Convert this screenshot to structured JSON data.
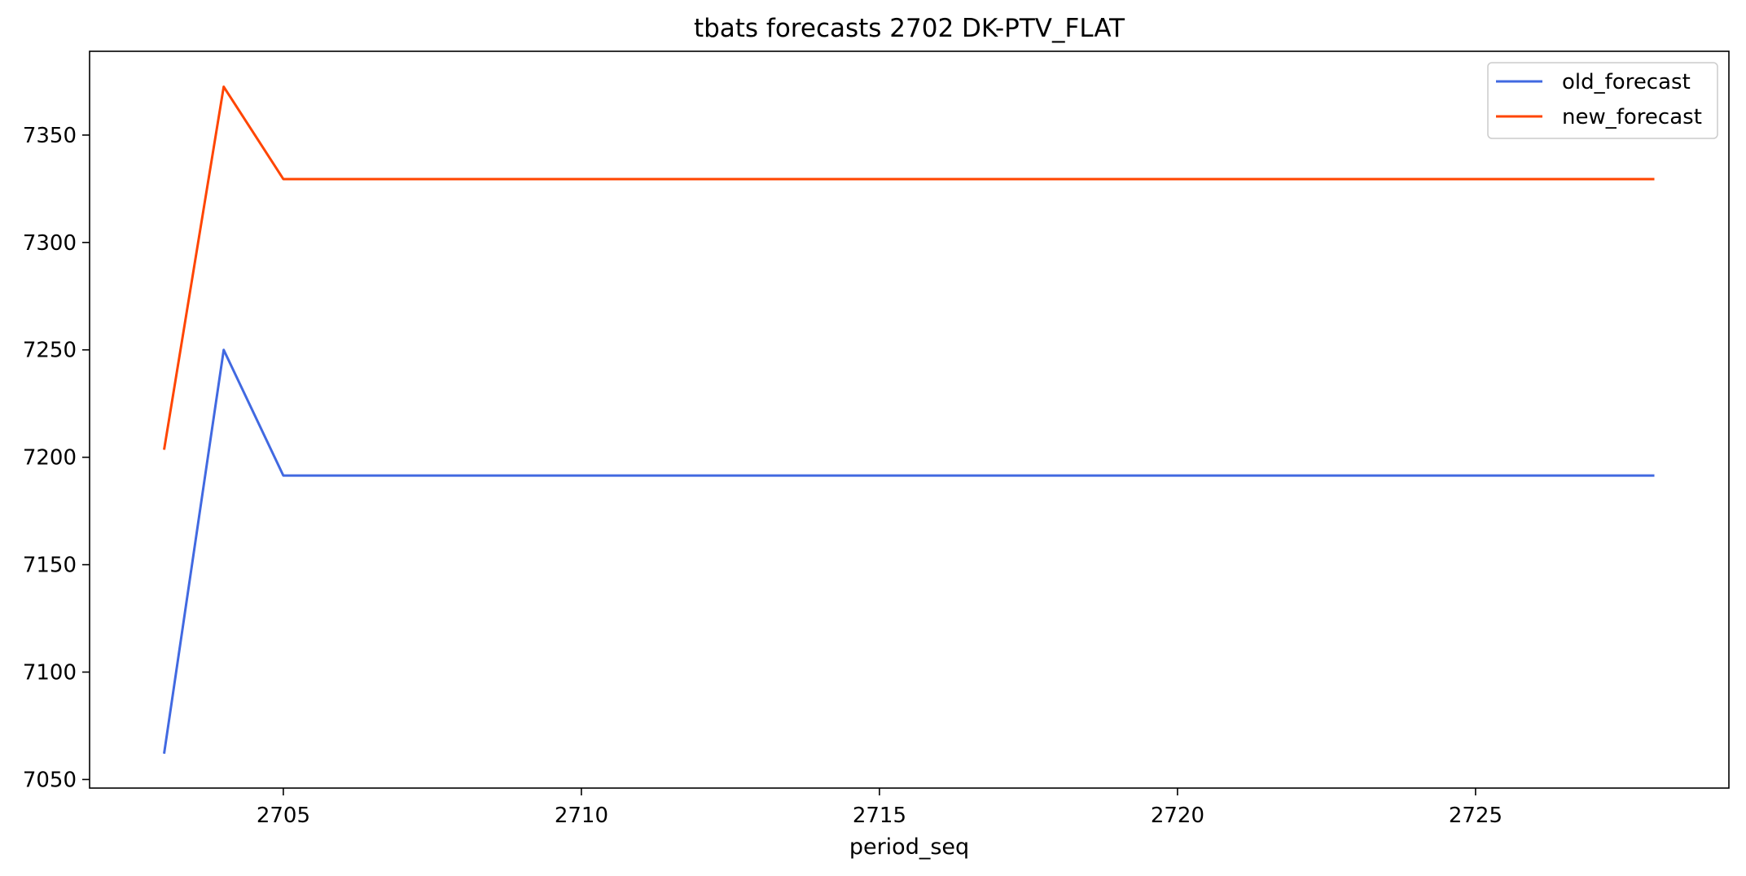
{
  "chart_data": {
    "type": "line",
    "title": "tbats forecasts 2702 DK-PTV_FLAT",
    "xlabel": "period_seq",
    "ylabel": "",
    "x": [
      2703,
      2704,
      2705,
      2706,
      2707,
      2708,
      2709,
      2710,
      2711,
      2712,
      2713,
      2714,
      2715,
      2716,
      2717,
      2718,
      2719,
      2720,
      2721,
      2722,
      2723,
      2724,
      2725,
      2726,
      2727,
      2728
    ],
    "series": [
      {
        "name": "old_forecast",
        "color": "#4169E1",
        "values": [
          7062,
          7250,
          7191.5,
          7191.5,
          7191.5,
          7191.5,
          7191.5,
          7191.5,
          7191.5,
          7191.5,
          7191.5,
          7191.5,
          7191.5,
          7191.5,
          7191.5,
          7191.5,
          7191.5,
          7191.5,
          7191.5,
          7191.5,
          7191.5,
          7191.5,
          7191.5,
          7191.5,
          7191.5,
          7191.5
        ]
      },
      {
        "name": "new_forecast",
        "color": "#FF4500",
        "values": [
          7203.5,
          7372.5,
          7329.5,
          7329.5,
          7329.5,
          7329.5,
          7329.5,
          7329.5,
          7329.5,
          7329.5,
          7329.5,
          7329.5,
          7329.5,
          7329.5,
          7329.5,
          7329.5,
          7329.5,
          7329.5,
          7329.5,
          7329.5,
          7329.5,
          7329.5,
          7329.5,
          7329.5,
          7329.5,
          7329.5
        ]
      }
    ],
    "xlim": [
      2701.75,
      2729.25
    ],
    "ylim": [
      7046,
      7389
    ],
    "xticks": [
      2705,
      2710,
      2715,
      2720,
      2725
    ],
    "yticks": [
      7050,
      7100,
      7150,
      7200,
      7250,
      7300,
      7350
    ],
    "grid": false,
    "legend": "top-right"
  }
}
